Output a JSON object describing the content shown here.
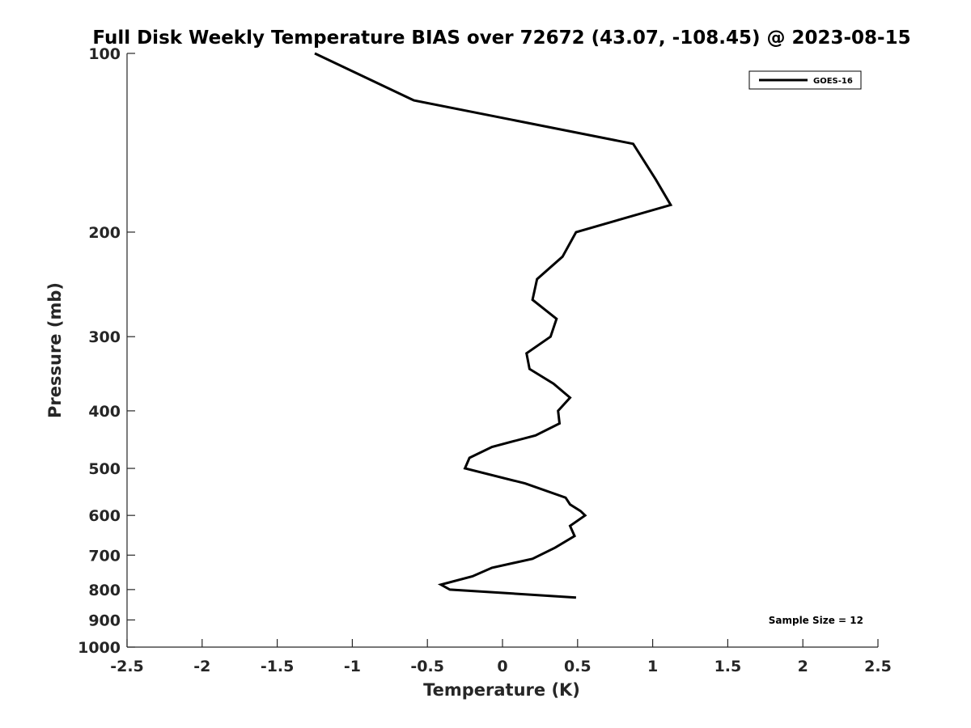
{
  "chart_data": {
    "type": "line",
    "title": "Full Disk Weekly Temperature BIAS over 72672 (43.07, -108.45) @ 2023-08-15",
    "xlabel": "Temperature (K)",
    "ylabel": "Pressure (mb)",
    "xlim": [
      -2.5,
      2.5
    ],
    "ylim": [
      1000,
      100
    ],
    "y_scale": "log",
    "y_reversed": true,
    "grid": false,
    "legend_position": "top-right",
    "x_ticks": [
      {
        "value": -2.5,
        "label": "-2.5"
      },
      {
        "value": -2,
        "label": "-2"
      },
      {
        "value": -1.5,
        "label": "-1.5"
      },
      {
        "value": -1,
        "label": "-1"
      },
      {
        "value": -0.5,
        "label": "-0.5"
      },
      {
        "value": 0,
        "label": "0"
      },
      {
        "value": 0.5,
        "label": "0.5"
      },
      {
        "value": 1,
        "label": "1"
      },
      {
        "value": 1.5,
        "label": "1.5"
      },
      {
        "value": 2,
        "label": "2"
      },
      {
        "value": 2.5,
        "label": "2.5"
      }
    ],
    "y_ticks": [
      {
        "value": 100,
        "label": "100"
      },
      {
        "value": 200,
        "label": "200"
      },
      {
        "value": 300,
        "label": "300"
      },
      {
        "value": 400,
        "label": "400"
      },
      {
        "value": 500,
        "label": "500"
      },
      {
        "value": 600,
        "label": "600"
      },
      {
        "value": 700,
        "label": "700"
      },
      {
        "value": 800,
        "label": "800"
      },
      {
        "value": 900,
        "label": "900"
      },
      {
        "value": 1000,
        "label": "1000"
      }
    ],
    "series": [
      {
        "name": "GOES-16",
        "color": "#000000",
        "points": [
          {
            "x": -1.25,
            "p": 100
          },
          {
            "x": -0.59,
            "p": 120
          },
          {
            "x": 0.87,
            "p": 142
          },
          {
            "x": 1.02,
            "p": 163
          },
          {
            "x": 1.12,
            "p": 180
          },
          {
            "x": 0.49,
            "p": 200
          },
          {
            "x": 0.4,
            "p": 220
          },
          {
            "x": 0.23,
            "p": 240
          },
          {
            "x": 0.2,
            "p": 260
          },
          {
            "x": 0.36,
            "p": 280
          },
          {
            "x": 0.32,
            "p": 300
          },
          {
            "x": 0.16,
            "p": 320
          },
          {
            "x": 0.18,
            "p": 340
          },
          {
            "x": 0.34,
            "p": 360
          },
          {
            "x": 0.45,
            "p": 380
          },
          {
            "x": 0.37,
            "p": 400
          },
          {
            "x": 0.38,
            "p": 420
          },
          {
            "x": 0.22,
            "p": 440
          },
          {
            "x": -0.07,
            "p": 460
          },
          {
            "x": -0.22,
            "p": 480
          },
          {
            "x": -0.25,
            "p": 500
          },
          {
            "x": 0.15,
            "p": 530
          },
          {
            "x": 0.42,
            "p": 560
          },
          {
            "x": 0.45,
            "p": 575
          },
          {
            "x": 0.52,
            "p": 590
          },
          {
            "x": 0.55,
            "p": 600
          },
          {
            "x": 0.45,
            "p": 625
          },
          {
            "x": 0.48,
            "p": 650
          },
          {
            "x": 0.35,
            "p": 680
          },
          {
            "x": 0.2,
            "p": 710
          },
          {
            "x": -0.07,
            "p": 735
          },
          {
            "x": -0.2,
            "p": 760
          },
          {
            "x": -0.41,
            "p": 785
          },
          {
            "x": -0.35,
            "p": 800
          },
          {
            "x": 0.49,
            "p": 825
          }
        ]
      }
    ],
    "annotations": [
      "Sample Size = 12"
    ]
  }
}
